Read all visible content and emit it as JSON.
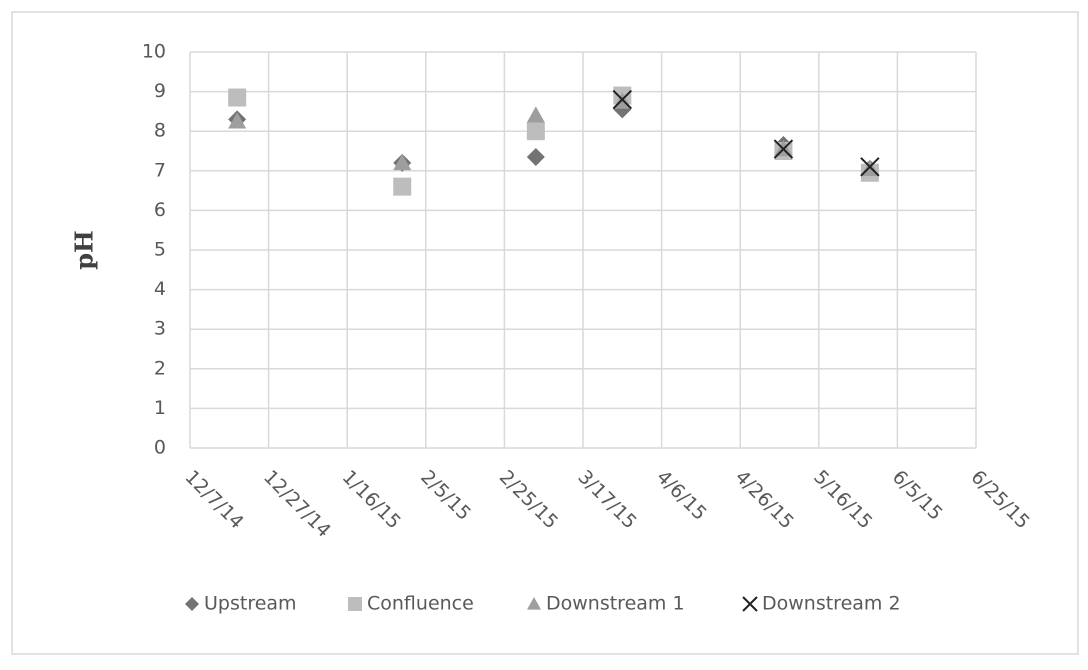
{
  "chart_data": {
    "type": "scatter",
    "y_label": "pH",
    "x": [
      "12/19/14",
      "1/30/15",
      "3/5/15",
      "3/27/15",
      "5/7/15",
      "5/29/15"
    ],
    "series": [
      {
        "name": "Upstream",
        "color": "#737373",
        "marker": "diamond",
        "values": [
          8.3,
          7.2,
          7.35,
          8.55,
          7.65,
          7.05
        ]
      },
      {
        "name": "Confluence",
        "color": "#bdbdbd",
        "marker": "square",
        "values": [
          8.85,
          6.6,
          8.0,
          8.9,
          7.5,
          6.95
        ]
      },
      {
        "name": "Downstream 1",
        "color": "#9e9e9e",
        "marker": "triangle",
        "values": [
          8.25,
          7.2,
          8.4,
          8.75,
          7.55,
          7.05
        ]
      },
      {
        "name": "Downstream 2",
        "color": "#222222",
        "marker": "x",
        "values": [
          null,
          null,
          null,
          8.8,
          7.55,
          7.1
        ]
      }
    ],
    "xlim": [
      "12/7/14",
      "6/25/15"
    ],
    "xticks": [
      "12/7/14",
      "12/27/14",
      "1/16/15",
      "2/5/15",
      "2/25/15",
      "3/17/15",
      "4/6/15",
      "4/26/15",
      "5/16/15",
      "6/5/15",
      "6/25/15"
    ],
    "ylim": [
      0,
      10
    ],
    "yticks": [
      0,
      1,
      2,
      3,
      4,
      5,
      6,
      7,
      8,
      9,
      10
    ],
    "grid": true,
    "legend": "bottom"
  }
}
